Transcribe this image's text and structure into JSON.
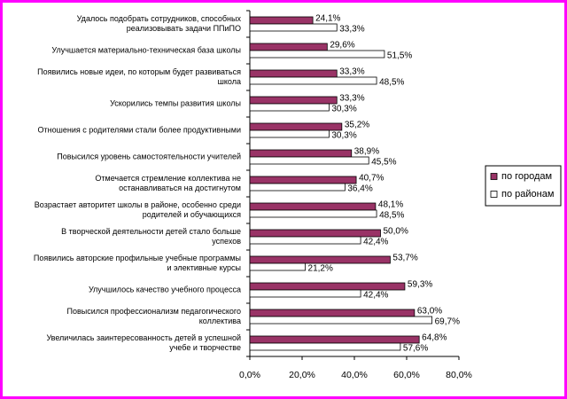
{
  "chart_data": {
    "type": "hbar",
    "categories": [
      [
        "Удалось подобрать сотрудников, способных",
        "реализовывать задачи ППиПО"
      ],
      [
        "Улучшается материально-техническая база школы"
      ],
      [
        "Появились новые идеи, по которым будет развиваться",
        "школа"
      ],
      [
        "Ускорились темпы развития школы"
      ],
      [
        "Отношения с родителями стали более продуктивными"
      ],
      [
        "Повысился уровень самостоятельности учителей"
      ],
      [
        "Отмечается стремление коллектива не",
        "останавливаться на достигнутом"
      ],
      [
        "Возрастает авторитет школы в районе, особенно среди",
        "родителей и обучающихся"
      ],
      [
        "В творческой деятельности детей стало больше",
        "успехов"
      ],
      [
        "Появились авторские профильные учебные программы",
        "и элективные курсы"
      ],
      [
        "Улучшилось качество учебного процесса"
      ],
      [
        "Повысился профессионализм педагогического",
        "коллектива"
      ],
      [
        "Увеличилась заинтересованность детей в успешной",
        "учебе и творчестве"
      ]
    ],
    "series": [
      {
        "name": "по городам",
        "color": "#993366",
        "values": [
          24.1,
          29.6,
          33.3,
          33.3,
          35.2,
          38.9,
          40.7,
          48.1,
          50.0,
          53.7,
          59.3,
          63.0,
          64.8
        ],
        "value_labels": [
          "24,1%",
          "29,6%",
          "33,3%",
          "33,3%",
          "35,2%",
          "38,9%",
          "40,7%",
          "48,1%",
          "50,0%",
          "53,7%",
          "59,3%",
          "63,0%",
          "64,8%"
        ]
      },
      {
        "name": "по районам",
        "color": "#ffffff",
        "values": [
          33.3,
          51.5,
          48.5,
          30.3,
          30.3,
          45.5,
          36.4,
          48.5,
          42.4,
          21.2,
          42.4,
          69.7,
          57.6
        ],
        "value_labels": [
          "33,3%",
          "51,5%",
          "48,5%",
          "30,3%",
          "30,3%",
          "45,5%",
          "36,4%",
          "48,5%",
          "42,4%",
          "21,2%",
          "42,4%",
          "69,7%",
          "57,6%"
        ]
      }
    ],
    "xlim": [
      0,
      80
    ],
    "xticks": [
      {
        "value": 0,
        "label": "0,0%"
      },
      {
        "value": 20,
        "label": "20,0%"
      },
      {
        "value": 40,
        "label": "40,0%"
      },
      {
        "value": 60,
        "label": "60,0%"
      },
      {
        "value": 80,
        "label": "80,0%"
      }
    ],
    "legend": "right"
  }
}
